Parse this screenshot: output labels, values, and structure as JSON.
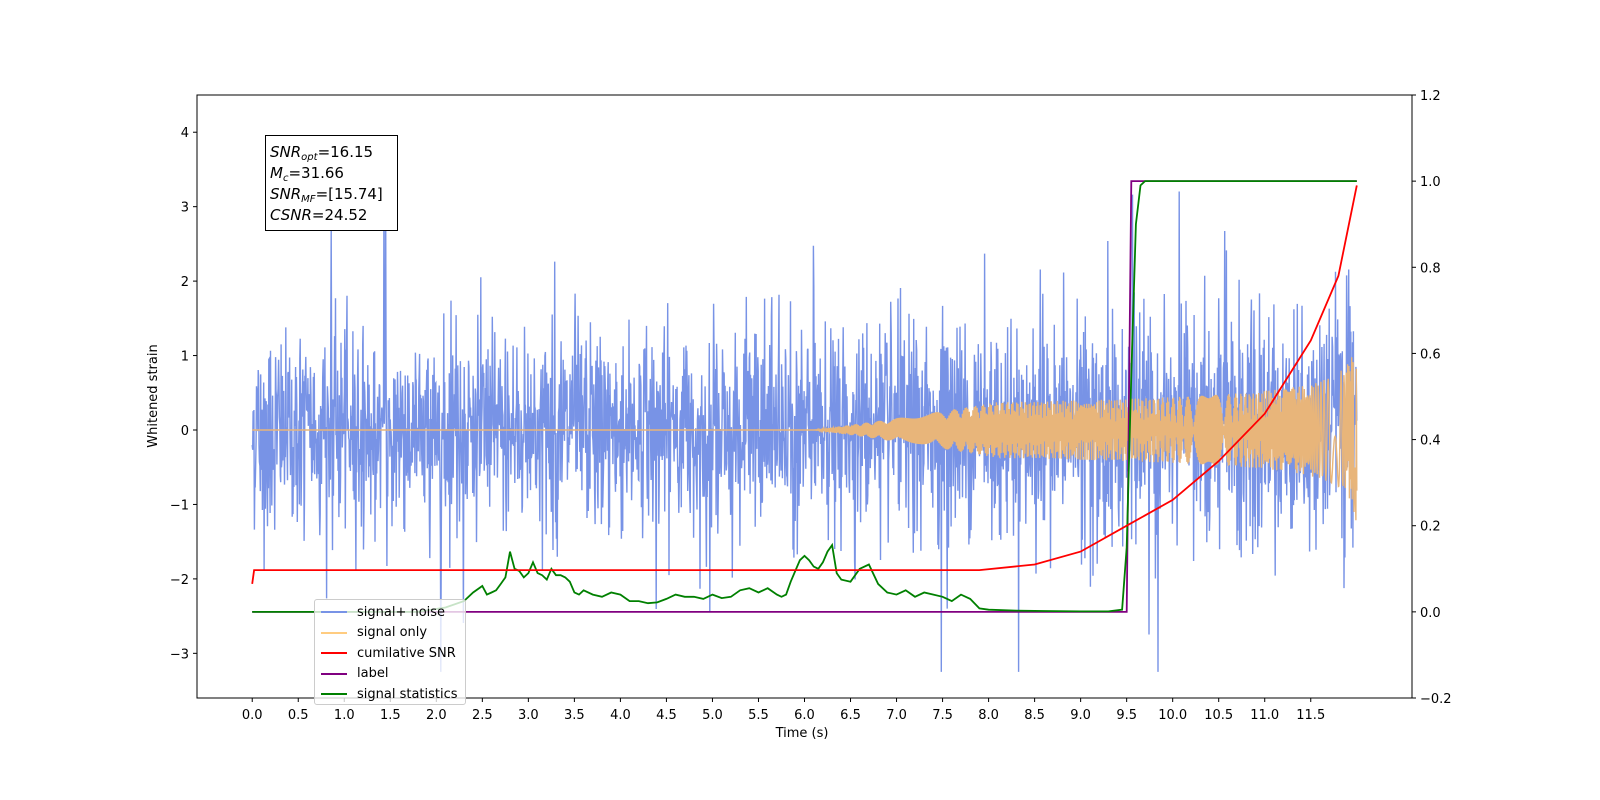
{
  "chart_data": {
    "type": "line",
    "xlabel": "Time (s)",
    "ylabel": "Whitened strain",
    "xlim": [
      -0.6,
      12.6
    ],
    "ylim_left": [
      -3.6,
      4.5
    ],
    "ylim_right": [
      -0.2,
      1.2
    ],
    "x_ticks": [
      "0.0",
      "0.5",
      "1.0",
      "1.5",
      "2.0",
      "2.5",
      "3.0",
      "3.5",
      "4.0",
      "4.5",
      "5.0",
      "5.5",
      "6.0",
      "6.5",
      "7.0",
      "7.5",
      "8.0",
      "8.5",
      "9.0",
      "9.5",
      "10.0",
      "10.5",
      "11.0",
      "11.5"
    ],
    "y_left_ticks": [
      "4",
      "3",
      "2",
      "1",
      "0",
      "−1",
      "−2",
      "−3"
    ],
    "y_right_ticks": [
      "1.2",
      "1.0",
      "0.8",
      "0.6",
      "0.4",
      "0.2",
      "0.0",
      "−0.2"
    ],
    "annotation": {
      "snr_opt_var": "SNR",
      "snr_opt_sub": "opt",
      "snr_opt_val": "=16.15",
      "mc_var": "M",
      "mc_sub": "c",
      "mc_val": "=31.66",
      "snr_mf_var": "SNR",
      "snr_mf_sub": "MF",
      "snr_mf_val": "=[15.74]",
      "csnr_var": "CSNR",
      "csnr_val": "=24.52"
    },
    "legend": [
      "signal+ noise",
      "signal only",
      "cumilative SNR",
      "label",
      "signal statistics"
    ],
    "colors": {
      "noise": "#7893e6",
      "signal": "#e8b57a",
      "signal_legend": "#ffcc80",
      "csnr": "#ff0000",
      "label": "#800080",
      "stats": "#008000"
    },
    "series": [
      {
        "name": "signal+ noise",
        "axis": "left",
        "description_values": {
          "x_range": [
            0.0,
            12.0
          ],
          "typical_band": [
            -1.6,
            1.6
          ],
          "max_peak": 4.1,
          "min_peak": -3.25
        }
      },
      {
        "name": "signal only",
        "axis": "left",
        "chirp": {
          "start_amplitude_time": 7.6,
          "end_time": 12.0,
          "end_amplitude": 1.4
        }
      },
      {
        "name": "cumilative SNR",
        "axis": "right",
        "x": [
          0.0,
          0.02,
          6.0,
          7.9,
          8.5,
          9.0,
          9.5,
          10.0,
          10.5,
          11.0,
          11.5,
          11.8,
          12.0
        ],
        "values": [
          0.065,
          0.097,
          0.097,
          0.097,
          0.11,
          0.14,
          0.2,
          0.26,
          0.35,
          0.46,
          0.63,
          0.78,
          0.99
        ]
      },
      {
        "name": "label",
        "axis": "right",
        "x": [
          0.0,
          9.5,
          9.55,
          12.0
        ],
        "values": [
          0.0,
          0.0,
          1.0,
          1.0
        ]
      },
      {
        "name": "signal statistics",
        "axis": "right",
        "x": [
          0.0,
          1.8,
          2.1,
          2.3,
          2.4,
          2.5,
          2.55,
          2.6,
          2.65,
          2.7,
          2.75,
          2.8,
          2.85,
          2.9,
          2.95,
          3.0,
          3.05,
          3.1,
          3.15,
          3.2,
          3.25,
          3.3,
          3.35,
          3.4,
          3.45,
          3.5,
          3.55,
          3.6,
          3.7,
          3.8,
          3.9,
          4.0,
          4.1,
          4.2,
          4.3,
          4.4,
          4.5,
          4.6,
          4.7,
          4.8,
          4.9,
          5.0,
          5.1,
          5.2,
          5.3,
          5.4,
          5.5,
          5.6,
          5.7,
          5.75,
          5.8,
          5.85,
          5.9,
          5.95,
          6.0,
          6.05,
          6.1,
          6.15,
          6.2,
          6.25,
          6.3,
          6.35,
          6.4,
          6.5,
          6.6,
          6.7,
          6.8,
          6.9,
          7.0,
          7.1,
          7.2,
          7.3,
          7.4,
          7.5,
          7.6,
          7.7,
          7.8,
          7.9,
          8.0,
          8.3,
          8.6,
          9.0,
          9.3,
          9.45,
          9.5,
          9.55,
          9.6,
          9.65,
          9.7,
          9.8,
          10.5,
          12.0
        ],
        "values": [
          0.0,
          0.0,
          0.01,
          0.025,
          0.045,
          0.06,
          0.04,
          0.045,
          0.05,
          0.065,
          0.08,
          0.14,
          0.1,
          0.095,
          0.08,
          0.09,
          0.115,
          0.09,
          0.085,
          0.075,
          0.1,
          0.085,
          0.085,
          0.08,
          0.07,
          0.045,
          0.04,
          0.05,
          0.04,
          0.035,
          0.045,
          0.04,
          0.025,
          0.025,
          0.02,
          0.022,
          0.03,
          0.04,
          0.035,
          0.035,
          0.03,
          0.04,
          0.032,
          0.035,
          0.05,
          0.055,
          0.045,
          0.055,
          0.04,
          0.035,
          0.04,
          0.07,
          0.095,
          0.12,
          0.13,
          0.12,
          0.105,
          0.1,
          0.115,
          0.14,
          0.155,
          0.09,
          0.075,
          0.07,
          0.1,
          0.11,
          0.065,
          0.045,
          0.04,
          0.05,
          0.035,
          0.045,
          0.04,
          0.035,
          0.025,
          0.04,
          0.03,
          0.008,
          0.005,
          0.003,
          0.002,
          0.001,
          0.001,
          0.005,
          0.15,
          0.55,
          0.9,
          0.99,
          1.0,
          1.0,
          1.0,
          1.0
        ]
      }
    ]
  }
}
